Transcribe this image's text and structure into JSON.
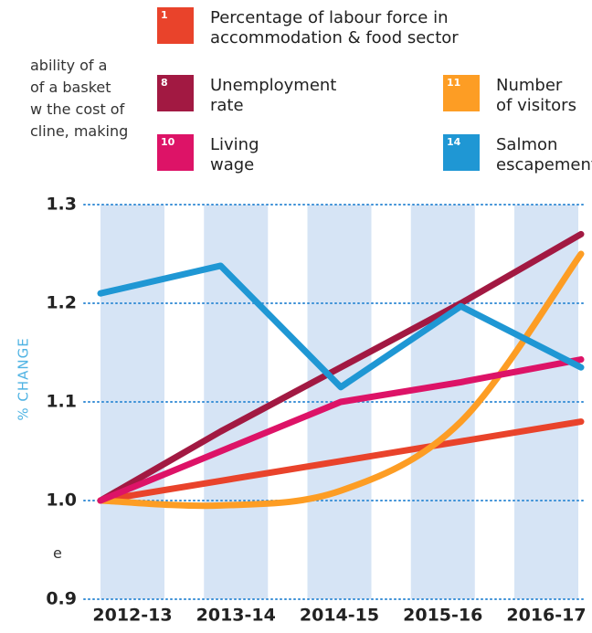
{
  "text_fragments": [
    "ability of a",
    "of a basket",
    "w the cost of",
    "cline, making",
    "e"
  ],
  "chart_data": {
    "type": "line",
    "y_label": "% CHANGE",
    "categories": [
      "2012-13",
      "2013-14",
      "2014-15",
      "2015-16",
      "2016-17"
    ],
    "ylim": [
      0.9,
      1.3
    ],
    "yticks": [
      0.9,
      {
        "value": 1,
        "label": "1.0"
      },
      1.1,
      1.2,
      1.3
    ],
    "grid": true,
    "band_color": "#d6e4f5",
    "series": [
      {
        "name": "Percentage of labour force in\naccommodation & food sector",
        "goal": "1",
        "color": "#e9432b",
        "values": [
          1.0,
          1.02,
          1.04,
          1.06,
          1.08
        ]
      },
      {
        "name": "Unemployment\nrate",
        "goal": "8",
        "color": "#a21942",
        "values": [
          1.0,
          1.07,
          1.135,
          1.2,
          1.27
        ]
      },
      {
        "name": "Number\nof visitors",
        "goal": "11",
        "color": "#fd9d24",
        "smooth": true,
        "values": [
          1.0,
          0.995,
          1.01,
          1.08,
          1.25
        ]
      },
      {
        "name": "Living\nwage",
        "goal": "10",
        "color": "#dd1367",
        "values": [
          1.0,
          1.05,
          1.1,
          1.12,
          1.143
        ]
      },
      {
        "name": "Salmon\nescapement",
        "goal": "14",
        "color": "#1f97d4",
        "values": [
          1.21,
          1.238,
          1.115,
          1.197,
          1.135
        ]
      }
    ]
  }
}
